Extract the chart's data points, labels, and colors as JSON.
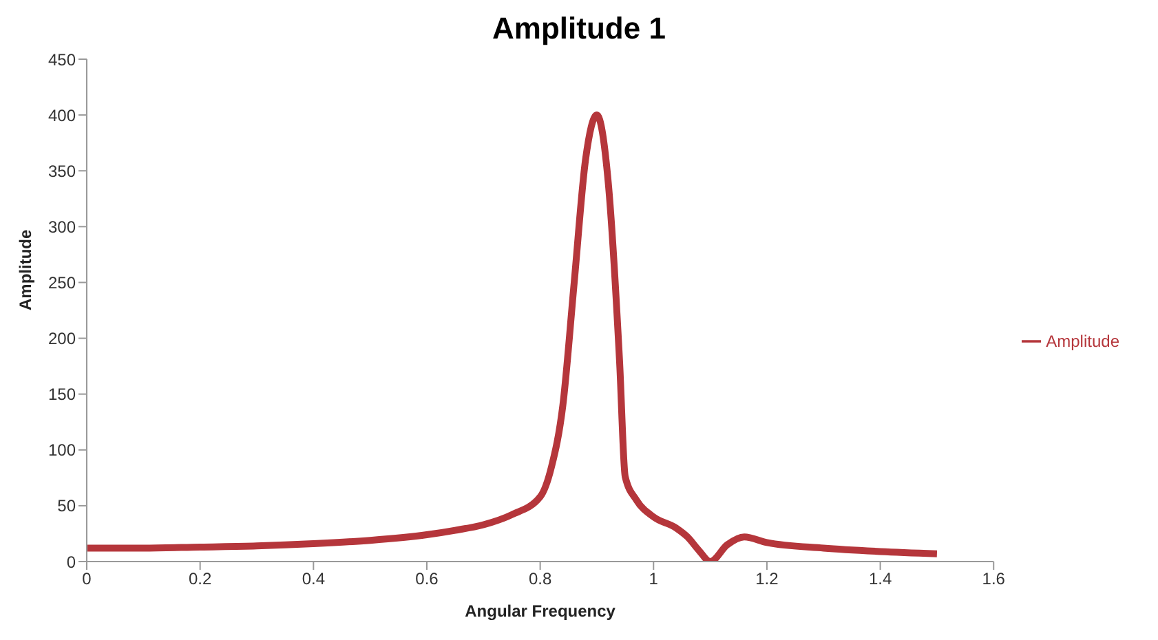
{
  "chart_data": {
    "type": "line",
    "title": "Amplitude 1",
    "xlabel": "Angular Frequency",
    "ylabel": "Amplitude",
    "x": [
      0,
      0.1,
      0.2,
      0.3,
      0.4,
      0.5,
      0.6,
      0.65,
      0.7,
      0.75,
      0.8,
      0.82,
      0.84,
      0.86,
      0.88,
      0.9,
      0.92,
      0.94,
      0.95,
      0.97,
      1.0,
      1.04,
      1.06,
      1.08,
      1.1,
      1.13,
      1.16,
      1.2,
      1.3,
      1.4,
      1.5
    ],
    "series": [
      {
        "name": "Amplitude",
        "color": "#b5363b",
        "values": [
          12,
          12,
          13,
          14,
          16,
          19,
          24,
          28,
          33,
          42,
          58,
          85,
          140,
          250,
          360,
          400,
          340,
          180,
          76,
          55,
          40,
          30,
          22,
          10,
          0,
          15,
          22,
          17,
          12,
          9,
          7
        ]
      }
    ],
    "xlim": [
      0,
      1.6
    ],
    "xticks": [
      0,
      0.2,
      0.4,
      0.6,
      0.8,
      1,
      1.2,
      1.4,
      1.6
    ],
    "ylim": [
      0,
      450
    ],
    "yticks": [
      0,
      50,
      100,
      150,
      200,
      250,
      300,
      350,
      400,
      450
    ],
    "grid": false,
    "legend": "right",
    "marker": "none",
    "line_style": "solid"
  }
}
